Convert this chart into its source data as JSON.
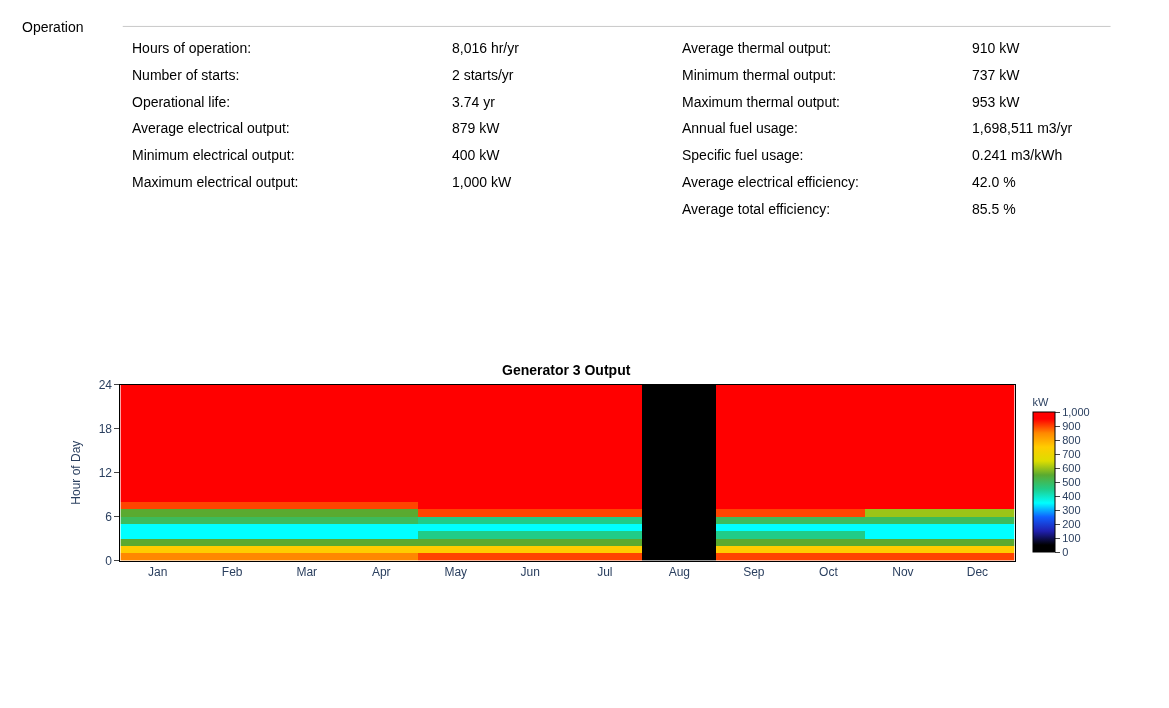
{
  "chart_data": [
    {
      "type": "other",
      "title": "Operation",
      "annotations": [
        "Hours of operation:",
        "8,016 hr/yr",
        "Number of starts:",
        "2 starts/yr",
        "Operational life:",
        "3.74 yr",
        "Average electrical output:",
        "879 kW",
        "Minimum electrical output:",
        "400 kW",
        "Maximum electrical output:",
        "1,000 kW",
        "Average thermal output:",
        "910 kW",
        "Minimum thermal output:",
        "737 kW",
        "Maximum thermal output:",
        "953 kW",
        "Annual fuel usage:",
        "1,698,511 m3/yr",
        "Specific fuel usage:",
        "0.241 m3/kWh",
        "Average electrical efficiency:",
        "42.0 %",
        "Average total efficiency:",
        "85.5 %"
      ]
    },
    {
      "type": "heatmap",
      "title": "Generator 3 Output",
      "ylabel": "Hour of Day",
      "clabel": "kW",
      "categories": [
        "Jan",
        "Feb",
        "Mar",
        "Apr",
        "May",
        "Jun",
        "Jul",
        "Aug",
        "Sep",
        "Oct",
        "Nov",
        "Dec"
      ],
      "y": [
        23.5,
        22.5,
        21.5,
        20.5,
        19.5,
        18.5,
        17.5,
        16.5,
        15.5,
        14.5,
        13.5,
        12.5,
        11.5,
        10.5,
        9.5,
        8.5,
        7.5,
        6.5,
        5.5,
        4.5,
        3.5,
        2.5,
        1.5,
        0.5
      ],
      "ylim": [
        0,
        24
      ],
      "yticks": [
        0,
        6,
        12,
        18,
        24
      ],
      "clim": [
        0,
        1000
      ],
      "cticks": [
        0,
        100,
        200,
        300,
        400,
        500,
        600,
        700,
        800,
        900,
        {
          "value": 1000,
          "label": "1,000"
        }
      ],
      "colors": [
        "#000000",
        "#2020b0",
        "#1060ff",
        "#00ffff",
        "#20cc88",
        "#5aaa30",
        "#dddd00",
        "#ffcc00",
        "#ff8800",
        "#ff0000"
      ],
      "cells": [
        [
          1000,
          1000,
          1000,
          1000,
          1000,
          1000,
          1000,
          0,
          1000,
          1000,
          1000,
          1000
        ],
        [
          1000,
          1000,
          1000,
          1000,
          1000,
          1000,
          1000,
          0,
          1000,
          1000,
          1000,
          1000
        ],
        [
          1000,
          1000,
          1000,
          1000,
          1000,
          1000,
          1000,
          0,
          1000,
          1000,
          1000,
          1000
        ],
        [
          1000,
          1000,
          1000,
          1000,
          1000,
          1000,
          1000,
          0,
          1000,
          1000,
          1000,
          1000
        ],
        [
          1000,
          1000,
          1000,
          1000,
          1000,
          1000,
          1000,
          0,
          1000,
          1000,
          1000,
          1000
        ],
        [
          1000,
          1000,
          1000,
          1000,
          1000,
          1000,
          1000,
          0,
          1000,
          1000,
          1000,
          1000
        ],
        [
          1000,
          1000,
          1000,
          1000,
          1000,
          1000,
          1000,
          0,
          1000,
          1000,
          1000,
          1000
        ],
        [
          1000,
          1000,
          1000,
          1000,
          1000,
          1000,
          1000,
          0,
          1000,
          1000,
          1000,
          1000
        ],
        [
          1000,
          1000,
          1000,
          1000,
          1000,
          1000,
          1000,
          0,
          1000,
          1000,
          1000,
          1000
        ],
        [
          1000,
          1000,
          1000,
          1000,
          1000,
          1000,
          1000,
          0,
          1000,
          1000,
          1000,
          1000
        ],
        [
          1000,
          1000,
          1000,
          1000,
          1000,
          1000,
          1000,
          0,
          1000,
          1000,
          1000,
          1000
        ],
        [
          1000,
          1000,
          1000,
          1000,
          1000,
          1000,
          1000,
          0,
          1000,
          1000,
          1000,
          1000
        ],
        [
          1000,
          1000,
          1000,
          1000,
          1000,
          1000,
          1000,
          0,
          1000,
          1000,
          1000,
          1000
        ],
        [
          1000,
          1000,
          1000,
          1000,
          1000,
          1000,
          1000,
          0,
          1000,
          1000,
          1000,
          1000
        ],
        [
          1000,
          1000,
          1000,
          1000,
          1000,
          1000,
          1000,
          0,
          1000,
          1000,
          1000,
          1000
        ],
        [
          1000,
          1000,
          1000,
          1000,
          1000,
          1000,
          1000,
          0,
          1000,
          1000,
          1000,
          1000
        ],
        [
          900,
          900,
          900,
          900,
          1000,
          1000,
          1000,
          0,
          1000,
          1000,
          950,
          950
        ],
        [
          550,
          550,
          550,
          550,
          900,
          900,
          900,
          0,
          900,
          900,
          600,
          600
        ],
        [
          500,
          500,
          500,
          500,
          450,
          450,
          450,
          0,
          500,
          500,
          500,
          500
        ],
        [
          350,
          350,
          350,
          350,
          350,
          350,
          350,
          0,
          350,
          350,
          350,
          350
        ],
        [
          350,
          350,
          350,
          350,
          450,
          450,
          450,
          0,
          450,
          450,
          350,
          350
        ],
        [
          550,
          550,
          550,
          550,
          550,
          550,
          550,
          0,
          550,
          550,
          550,
          550
        ],
        [
          750,
          750,
          750,
          750,
          750,
          750,
          750,
          0,
          750,
          750,
          750,
          750
        ],
        [
          850,
          850,
          850,
          850,
          900,
          900,
          900,
          0,
          900,
          900,
          900,
          900
        ]
      ]
    }
  ]
}
